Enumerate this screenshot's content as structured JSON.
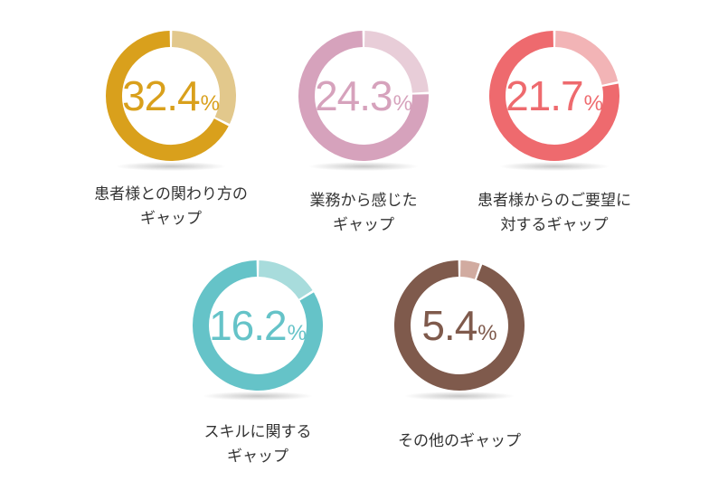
{
  "chart_data": [
    {
      "type": "pie",
      "value": 32.4,
      "display": "32.4",
      "unit": "%",
      "label_lines": [
        "患者様との関わり方の",
        "ギャップ"
      ],
      "color": "#D9A01C",
      "light": "#E2C88C"
    },
    {
      "type": "pie",
      "value": 24.3,
      "display": "24.3",
      "unit": "%",
      "label_lines": [
        "業務から感じた",
        "ギャップ"
      ],
      "color": "#D6A2BC",
      "light": "#E8CDD8"
    },
    {
      "type": "pie",
      "value": 21.7,
      "display": "21.7",
      "unit": "%",
      "label_lines": [
        "患者様からのご要望に",
        "対するギャップ"
      ],
      "color": "#EE6A6E",
      "light": "#F2B4B6"
    },
    {
      "type": "pie",
      "value": 16.2,
      "display": "16.2",
      "unit": "%",
      "label_lines": [
        "スキルに関する",
        "ギャップ"
      ],
      "color": "#65C3C8",
      "light": "#A8DCDC"
    },
    {
      "type": "pie",
      "value": 5.4,
      "display": "5.4",
      "unit": "%",
      "label_lines": [
        "その他のギャップ"
      ],
      "color": "#7F5A4C",
      "light": "#D1ABA0"
    }
  ]
}
